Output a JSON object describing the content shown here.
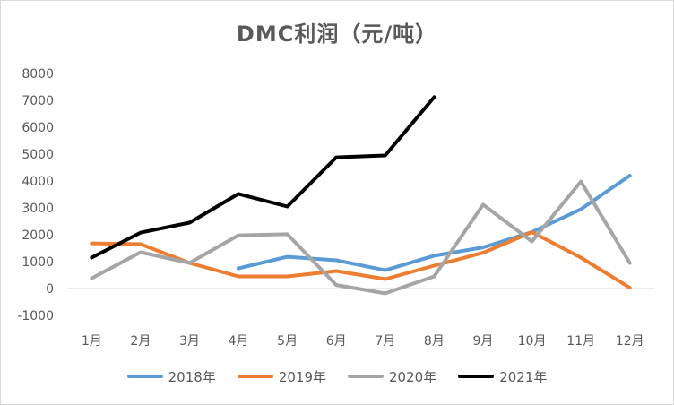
{
  "chart_data": {
    "type": "line",
    "title": "DMC利润（元/吨）",
    "xlabel": "",
    "ylabel": "",
    "categories": [
      "1月",
      "2月",
      "3月",
      "4月",
      "5月",
      "6月",
      "7月",
      "8月",
      "9月",
      "10月",
      "11月",
      "12月"
    ],
    "ylim": [
      -1000,
      8000
    ],
    "yticks": [
      "8000",
      "7000",
      "6000",
      "5000",
      "4000",
      "3000",
      "2000",
      "1000",
      "0",
      "-1000"
    ],
    "grid": false,
    "legend_position": "bottom",
    "series": [
      {
        "name": "2018年",
        "color": "#5b9bd5",
        "values": [
          null,
          null,
          null,
          750,
          1180,
          1050,
          680,
          1220,
          1530,
          2100,
          2950,
          4200
        ]
      },
      {
        "name": "2019年",
        "color": "#ed7d31",
        "values": [
          1680,
          1650,
          950,
          450,
          450,
          650,
          350,
          850,
          1330,
          2100,
          1150,
          30
        ]
      },
      {
        "name": "2020年",
        "color": "#a5a5a5",
        "values": [
          380,
          1350,
          950,
          1980,
          2020,
          130,
          -180,
          450,
          3120,
          1750,
          3980,
          950
        ]
      },
      {
        "name": "2021年",
        "color": "#000000",
        "values": [
          1150,
          2080,
          2450,
          3520,
          3050,
          4880,
          4950,
          7120,
          null,
          null,
          null,
          null
        ]
      }
    ]
  }
}
